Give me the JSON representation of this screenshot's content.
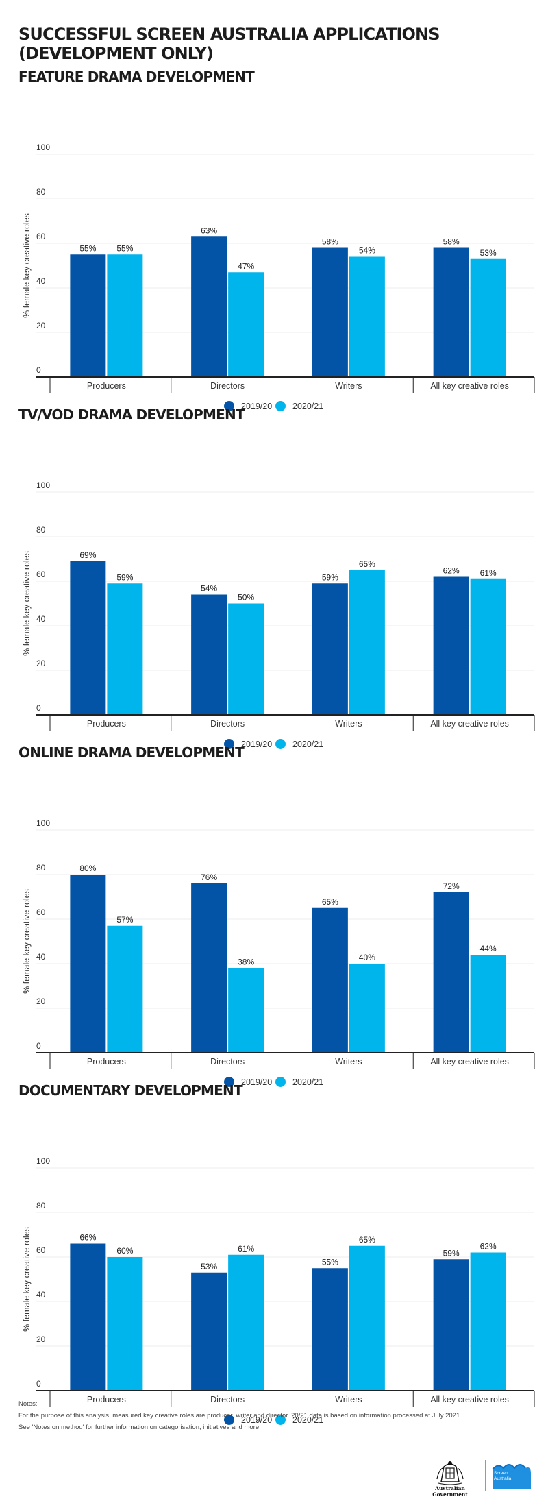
{
  "page_title": "SUCCESSFUL SCREEN AUSTRALIA APPLICATIONS (DEVELOPMENT ONLY)",
  "colors": {
    "series_2019": "#0354a6",
    "series_2020": "#00b4ec",
    "axis": "#222222",
    "grid": "#ececec"
  },
  "chart_data": [
    {
      "type": "bar",
      "title": "FEATURE DRAMA DEVELOPMENT",
      "ylabel": "% female key creative roles",
      "ylim": [
        0,
        100
      ],
      "yticks": [
        0,
        20,
        40,
        60,
        80,
        100
      ],
      "grid": true,
      "legend": "bottom-center",
      "categories": [
        "Producers",
        "Directors",
        "Writers",
        "All key creative roles"
      ],
      "series": [
        {
          "name": "2019/20",
          "values": [
            55,
            63,
            58,
            58
          ],
          "labels": [
            "55%",
            "63%",
            "58%",
            "58%"
          ]
        },
        {
          "name": "2020/21",
          "values": [
            55,
            47,
            54,
            53
          ],
          "labels": [
            "55%",
            "47%",
            "54%",
            "53%"
          ]
        }
      ]
    },
    {
      "type": "bar",
      "title": "TV/VOD DRAMA DEVELOPMENT",
      "ylabel": "% female key creative roles",
      "ylim": [
        0,
        100
      ],
      "yticks": [
        0,
        20,
        40,
        60,
        80,
        100
      ],
      "grid": true,
      "legend": "bottom-center",
      "categories": [
        "Producers",
        "Directors",
        "Writers",
        "All key creative roles"
      ],
      "series": [
        {
          "name": "2019/20",
          "values": [
            69,
            54,
            59,
            62
          ],
          "labels": [
            "69%",
            "54%",
            "59%",
            "62%"
          ]
        },
        {
          "name": "2020/21",
          "values": [
            59,
            50,
            65,
            61
          ],
          "labels": [
            "59%",
            "50%",
            "65%",
            "61%"
          ]
        }
      ]
    },
    {
      "type": "bar",
      "title": "ONLINE DRAMA DEVELOPMENT",
      "ylabel": "% female key creative roles",
      "ylim": [
        0,
        100
      ],
      "yticks": [
        0,
        20,
        40,
        60,
        80,
        100
      ],
      "grid": true,
      "legend": "bottom-center",
      "categories": [
        "Producers",
        "Directors",
        "Writers",
        "All key creative roles"
      ],
      "series": [
        {
          "name": "2019/20",
          "values": [
            80,
            76,
            65,
            72
          ],
          "labels": [
            "80%",
            "76%",
            "65%",
            "72%"
          ]
        },
        {
          "name": "2020/21",
          "values": [
            57,
            38,
            40,
            44
          ],
          "labels": [
            "57%",
            "38%",
            "40%",
            "44%"
          ]
        }
      ]
    },
    {
      "type": "bar",
      "title": "DOCUMENTARY DEVELOPMENT",
      "ylabel": "% female key creative roles",
      "ylim": [
        0,
        100
      ],
      "yticks": [
        0,
        20,
        40,
        60,
        80,
        100
      ],
      "grid": true,
      "legend": "bottom-center",
      "categories": [
        "Producers",
        "Directors",
        "Writers",
        "All key creative roles"
      ],
      "series": [
        {
          "name": "2019/20",
          "values": [
            66,
            53,
            55,
            59
          ],
          "labels": [
            "66%",
            "53%",
            "55%",
            "59%"
          ]
        },
        {
          "name": "2020/21",
          "values": [
            60,
            61,
            65,
            62
          ],
          "labels": [
            "60%",
            "61%",
            "65%",
            "62%"
          ]
        }
      ]
    }
  ],
  "notes": {
    "heading": "Notes:",
    "line1": "For the purpose of this analysis, measured key creative roles are producer, writer and director. 20/21 data is based on information processed at July 2021.",
    "line2_pre": "See '",
    "line2_link": "Notes on method",
    "line2_post": "' for further information on categorisation, initiatives and more."
  },
  "footer": {
    "gov_logo_text": "Australian Government",
    "gov_logo_icon": "coat-of-arms-icon",
    "sa_logo_line1": "Screen",
    "sa_logo_line2": "Australia",
    "sa_logo_icon": "screen-australia-logo-icon"
  }
}
